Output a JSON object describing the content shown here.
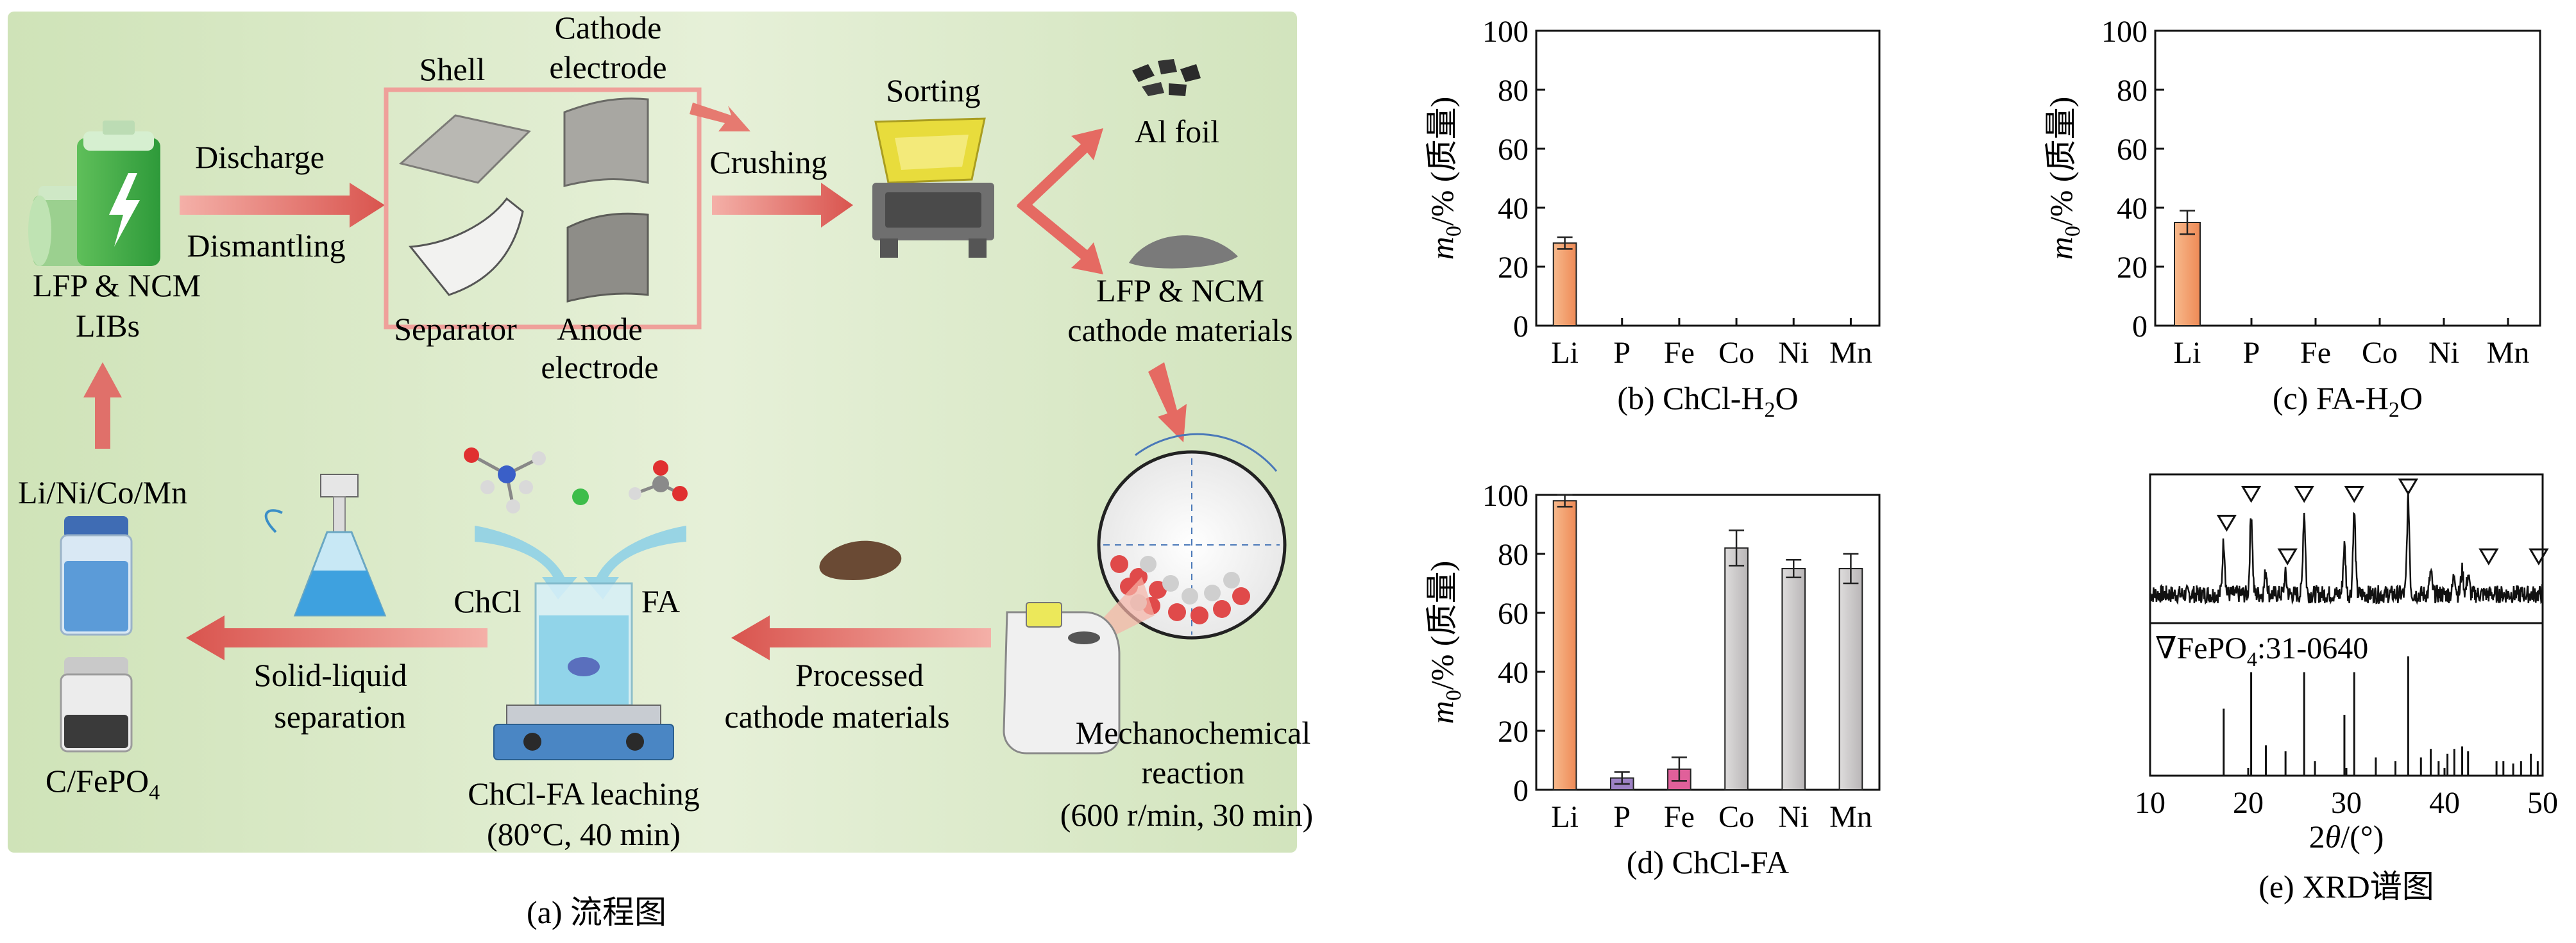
{
  "flow": {
    "caption": "(a) 流程图",
    "discharge": "Discharge",
    "dismantling": "Dismantling",
    "libs_line1": "LFP & NCM",
    "libs_line2": "LIBs",
    "shell": "Shell",
    "cathode_electrode_line1": "Cathode",
    "cathode_electrode_line2": "electrode",
    "separator": "Separator",
    "anode_line1": "Anode",
    "anode_line2": "electrode",
    "crushing": "Crushing",
    "sorting": "Sorting",
    "al_foil": "Al foil",
    "cathode_materials_line1": "LFP & NCM",
    "cathode_materials_line2": "cathode materials",
    "mechano_line1": "Mechanochemical",
    "mechano_line2": "reaction",
    "mechano_line3": "(600 r/min, 30 min)",
    "processed_line1": "Processed",
    "processed_line2": "cathode materials",
    "chcl": "ChCl",
    "fa": "FA",
    "leaching_line1": "ChCl-FA leaching",
    "leaching_line2": "(80°C, 40 min)",
    "solid_liquid_line1": "Solid-liquid",
    "solid_liquid_line2": "separation",
    "metals": "Li/Ni/Co/Mn",
    "cfepo4": "C/FePO4"
  },
  "colors": {
    "panel_bg": "#dcebc9",
    "arrow": "#e0706a",
    "box": "#efa09a",
    "li_bar": "#f4a070",
    "p_bar": "#9d82c4",
    "fe_bar": "#e0609a",
    "gray_bar": "#c8c5c6"
  },
  "chart_data": [
    {
      "type": "bar",
      "title": "(b) ChCl-H2O",
      "ylabel": "m0/% (质量)",
      "categories": [
        "Li",
        "P",
        "Fe",
        "Co",
        "Ni",
        "Mn"
      ],
      "values": [
        28,
        0,
        0,
        0,
        0,
        0
      ],
      "errors": [
        2,
        0,
        0,
        0,
        0,
        0
      ],
      "ylim": [
        0,
        100
      ],
      "yticks": [
        0,
        20,
        40,
        60,
        80,
        100
      ]
    },
    {
      "type": "bar",
      "title": "(c) FA-H2O",
      "ylabel": "m0/% (质量)",
      "categories": [
        "Li",
        "P",
        "Fe",
        "Co",
        "Ni",
        "Mn"
      ],
      "values": [
        35,
        0,
        0,
        0,
        0,
        0
      ],
      "errors": [
        4,
        0,
        0,
        0,
        0,
        0
      ],
      "ylim": [
        0,
        100
      ],
      "yticks": [
        0,
        20,
        40,
        60,
        80,
        100
      ]
    },
    {
      "type": "bar",
      "title": "(d) ChCl-FA",
      "ylabel": "m0/% (质量)",
      "categories": [
        "Li",
        "P",
        "Fe",
        "Co",
        "Ni",
        "Mn"
      ],
      "values": [
        98,
        4,
        7,
        82,
        75,
        75
      ],
      "errors": [
        2,
        2,
        4,
        6,
        3,
        5
      ],
      "ylim": [
        0,
        100
      ],
      "yticks": [
        0,
        20,
        40,
        60,
        80,
        100
      ]
    },
    {
      "type": "line",
      "title": "(e) XRD谱图",
      "xlabel": "2θ/(°)",
      "xlim": [
        10,
        50
      ],
      "xticks": [
        10,
        20,
        30,
        40,
        50
      ],
      "legend": "∇FePO4:31-0640",
      "marker_positions": [
        17.8,
        20.3,
        24.0,
        25.7,
        30.8,
        36.3,
        44.5,
        49.6
      ],
      "reference_peaks": [
        {
          "x": 17.5,
          "h": 0.55
        },
        {
          "x": 20.3,
          "h": 0.85
        },
        {
          "x": 21.8,
          "h": 0.25
        },
        {
          "x": 23.8,
          "h": 0.2
        },
        {
          "x": 25.7,
          "h": 0.85
        },
        {
          "x": 26.8,
          "h": 0.12
        },
        {
          "x": 29.8,
          "h": 0.5
        },
        {
          "x": 30.8,
          "h": 0.85
        },
        {
          "x": 33.0,
          "h": 0.15
        },
        {
          "x": 35.0,
          "h": 0.12
        },
        {
          "x": 36.3,
          "h": 0.98
        },
        {
          "x": 37.6,
          "h": 0.15
        },
        {
          "x": 38.6,
          "h": 0.22
        },
        {
          "x": 39.4,
          "h": 0.12
        },
        {
          "x": 40.3,
          "h": 0.18
        },
        {
          "x": 41.0,
          "h": 0.22
        },
        {
          "x": 41.8,
          "h": 0.24
        },
        {
          "x": 42.4,
          "h": 0.2
        },
        {
          "x": 45.3,
          "h": 0.12
        },
        {
          "x": 46.0,
          "h": 0.12
        },
        {
          "x": 47.0,
          "h": 0.1
        },
        {
          "x": 47.8,
          "h": 0.12
        },
        {
          "x": 48.8,
          "h": 0.18
        },
        {
          "x": 49.5,
          "h": 0.12
        }
      ]
    }
  ]
}
